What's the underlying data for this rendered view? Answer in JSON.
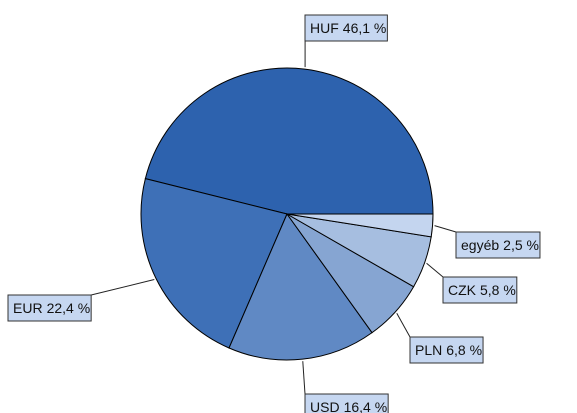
{
  "chart_data": {
    "type": "pie",
    "categories": [
      "HUF",
      "EUR",
      "USD",
      "PLN",
      "CZK",
      "egyéb"
    ],
    "values": [
      46.1,
      22.4,
      16.4,
      6.8,
      5.8,
      2.5
    ],
    "value_labels": [
      "46,1 %",
      "22,4 %",
      "16,4 %",
      "6,8 %",
      "5,8 %",
      "2,5 %"
    ],
    "colors": [
      "#2d62ae",
      "#3e70b7",
      "#6089c4",
      "#86a5d2",
      "#a6bee0",
      "#c4d5ef"
    ]
  }
}
